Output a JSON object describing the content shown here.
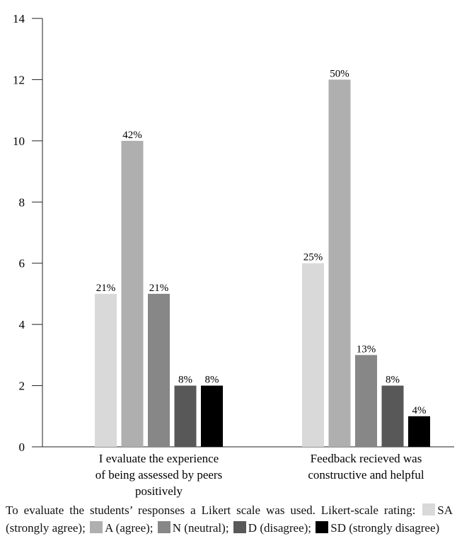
{
  "chart_data": {
    "type": "bar",
    "categories": [
      "I evaluate the experience of being assessed by peers positively",
      "Feedback recieved was constructive and helpful"
    ],
    "category_label_lines": [
      [
        "I evaluate the experience",
        "of being assessed by peers",
        "positively"
      ],
      [
        "Feedback recieved was",
        "constructive and helpful"
      ]
    ],
    "series": [
      {
        "name": "SA",
        "values": [
          5,
          6
        ],
        "labels": [
          "21%",
          "25%"
        ],
        "color": "#d9d9d9"
      },
      {
        "name": "A",
        "values": [
          10,
          12
        ],
        "labels": [
          "42%",
          "50%"
        ],
        "color": "#afafaf"
      },
      {
        "name": "N",
        "values": [
          5,
          3
        ],
        "labels": [
          "21%",
          "13%"
        ],
        "color": "#878787"
      },
      {
        "name": "D",
        "values": [
          2,
          2
        ],
        "labels": [
          "8%",
          "8%"
        ],
        "color": "#585858"
      },
      {
        "name": "SD",
        "values": [
          2,
          1
        ],
        "labels": [
          "8%",
          "4%"
        ],
        "color": "#000000"
      }
    ],
    "ylim": [
      0,
      14
    ],
    "yticks": [
      0,
      2,
      4,
      6,
      8,
      10,
      12,
      14
    ],
    "xlabel": "",
    "ylabel": "",
    "title": "",
    "grid": false
  },
  "caption": {
    "text_before": "To evaluate the students’ responses a Likert scale was used. Likert-scale rating: ",
    "legend": [
      {
        "text": "SA (strongly agree); ",
        "color": "#d9d9d9"
      },
      {
        "text": "A (agree); ",
        "color": "#afafaf"
      },
      {
        "text": "N (neutral); ",
        "color": "#878787"
      },
      {
        "text": "D (disagree); ",
        "color": "#585858"
      },
      {
        "text": "SD (strongly disagree)",
        "color": "#000000"
      }
    ]
  }
}
